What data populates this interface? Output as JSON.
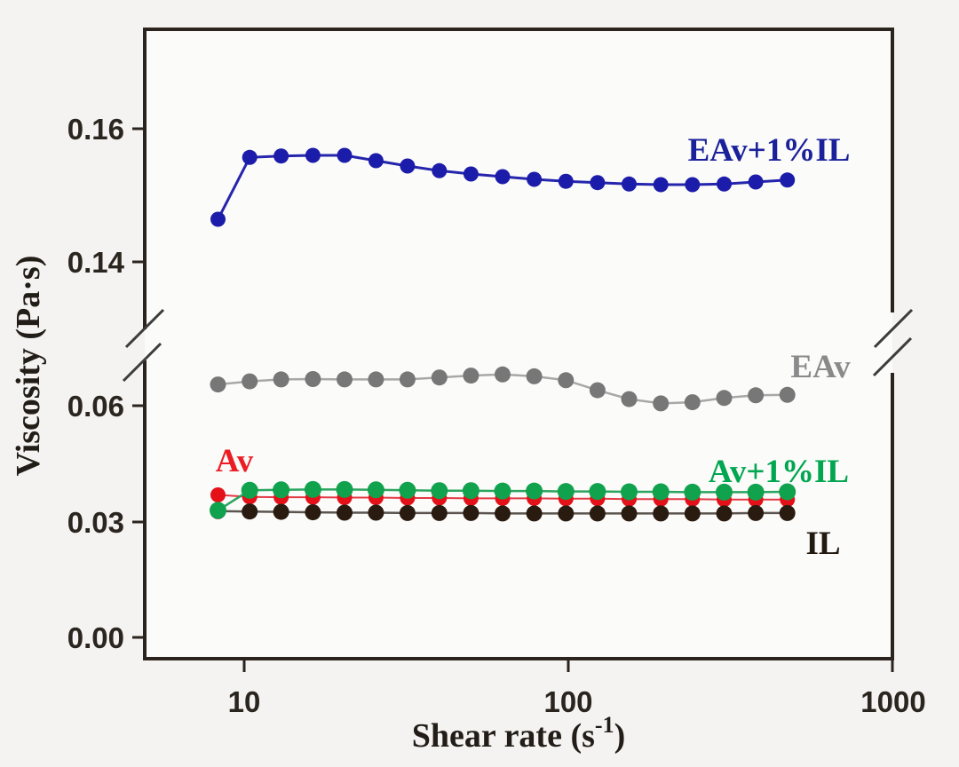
{
  "figure": {
    "type_hint": "broken-y-axis viscosity flow curve plot"
  },
  "chart_data": {
    "type": "line",
    "title": "",
    "xlabel": "Shear rate (s⁻¹)",
    "ylabel": "Viscosity (Pa·s)",
    "xlabel_parts": {
      "main": "Shear rate (s",
      "sup": "-1",
      "close": ")"
    },
    "x_scale": "log",
    "xlim": [
      4.9,
      1000
    ],
    "y_axis_break": [
      0.072,
      0.131
    ],
    "ylim_lower": [
      -0.006,
      0.072
    ],
    "ylim_upper": [
      0.131,
      0.175
    ],
    "grid": false,
    "legend_position": "inline-annotations",
    "x_tick_labels": [
      "10",
      "100",
      "1000"
    ],
    "x_tick_values": [
      10,
      100,
      1000
    ],
    "y_tick_labels": [
      "0.16",
      "0.14",
      "0.06",
      "0.03",
      "0.00"
    ],
    "y_tick_values": [
      0.16,
      0.14,
      0.06,
      0.03,
      0.0
    ],
    "x": [
      8.3,
      10.4,
      13.0,
      16.3,
      20.4,
      25.5,
      31.9,
      40.0,
      50.1,
      62.7,
      78.5,
      98.3,
      123.1,
      154.1,
      193.0,
      241.6,
      302.5,
      378.8,
      474.2
    ],
    "series": [
      {
        "id": "eav-1il",
        "name": "EAv+1%IL",
        "dot_color": "#1c1caa",
        "line_color": "#2525ad",
        "label_color": "#1b219b",
        "values": [
          0.1464,
          0.1557,
          0.1559,
          0.156,
          0.156,
          0.1552,
          0.1544,
          0.1537,
          0.1532,
          0.1528,
          0.1524,
          0.1521,
          0.1519,
          0.1517,
          0.1516,
          0.1516,
          0.1517,
          0.152,
          0.1523
        ]
      },
      {
        "id": "eav",
        "name": "EAv",
        "dot_color": "#777777",
        "line_color": "#a8a8a8",
        "label_color": "#8a8a8a",
        "values": [
          0.0655,
          0.0663,
          0.0668,
          0.0669,
          0.0668,
          0.0668,
          0.0668,
          0.0673,
          0.0678,
          0.0681,
          0.0676,
          0.0666,
          0.064,
          0.0617,
          0.0606,
          0.0609,
          0.062,
          0.0627,
          0.0628
        ]
      },
      {
        "id": "av",
        "name": "Av",
        "dot_color": "#e41119",
        "line_color": "#e43944",
        "label_color": "#ec1c24",
        "values": [
          0.0369,
          0.0364,
          0.0363,
          0.0363,
          0.0362,
          0.0362,
          0.0361,
          0.0361,
          0.036,
          0.036,
          0.036,
          0.0359,
          0.0359,
          0.0358,
          0.0358,
          0.0358,
          0.0357,
          0.0357,
          0.0357
        ]
      },
      {
        "id": "il",
        "name": "IL",
        "dot_color": "#2a1b10",
        "line_color": "#5b5550",
        "label_color": "#221911",
        "values": [
          0.0327,
          0.0326,
          0.0325,
          0.0324,
          0.0323,
          0.0323,
          0.0322,
          0.0322,
          0.0322,
          0.0321,
          0.0321,
          0.0321,
          0.0321,
          0.0321,
          0.0321,
          0.0321,
          0.0321,
          0.0322,
          0.0322
        ]
      },
      {
        "id": "av-1il",
        "name": "Av+1%IL",
        "dot_color": "#10a24d",
        "line_color": "#2ba55e",
        "label_color": "#00a650",
        "values": [
          0.0329,
          0.0381,
          0.0382,
          0.0383,
          0.0383,
          0.0382,
          0.0381,
          0.038,
          0.038,
          0.0379,
          0.0379,
          0.0378,
          0.0378,
          0.0377,
          0.0377,
          0.0376,
          0.0376,
          0.0376,
          0.0377
        ]
      }
    ]
  }
}
